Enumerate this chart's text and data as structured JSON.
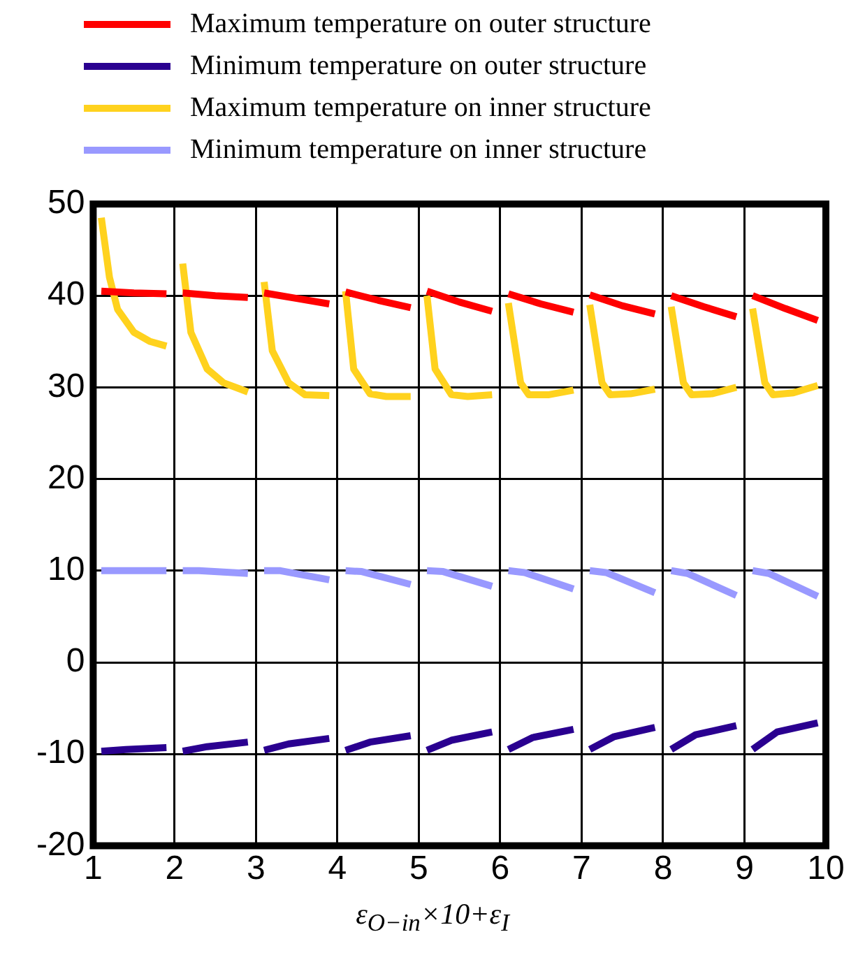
{
  "chart_data": {
    "type": "line",
    "xlabel": "ε$_{O−in}$×10+ε$_{I}$",
    "xlim": [
      1,
      10
    ],
    "xticks": [
      1,
      2,
      3,
      4,
      5,
      6,
      7,
      8,
      9,
      10
    ],
    "ylim": [
      -20,
      50
    ],
    "yticks": [
      -20,
      -10,
      0,
      10,
      20,
      30,
      40,
      50
    ],
    "grid": true,
    "legend": "top left",
    "line_style": "solid",
    "marker": "none",
    "series": [
      {
        "name": "Maximum temperature on outer structure",
        "color": "#ff0000",
        "x": [
          1.1,
          1.5,
          1.9,
          1.95,
          2.1,
          2.5,
          2.9,
          2.95,
          3.1,
          3.5,
          3.9,
          3.95,
          4.1,
          4.5,
          4.9,
          4.95,
          5.1,
          5.5,
          5.9,
          5.95,
          6.1,
          6.5,
          6.9,
          6.95,
          7.1,
          7.5,
          7.9,
          7.95,
          8.1,
          8.5,
          8.9,
          8.95,
          9.1,
          9.5,
          9.9
        ],
        "values": [
          40.5,
          40.3,
          40.2,
          null,
          40.3,
          40.0,
          39.8,
          null,
          40.3,
          39.7,
          39.1,
          null,
          40.4,
          39.5,
          38.7,
          null,
          40.5,
          39.3,
          38.3,
          null,
          40.2,
          39.1,
          38.2,
          null,
          40.1,
          38.9,
          38.0,
          null,
          40.0,
          38.8,
          37.7,
          null,
          40.0,
          38.6,
          37.3
        ]
      },
      {
        "name": "Minimum temperature on outer structure",
        "color": "#2a0090",
        "x": [
          1.1,
          1.4,
          1.9,
          1.95,
          2.1,
          2.4,
          2.9,
          2.95,
          3.1,
          3.4,
          3.9,
          3.95,
          4.1,
          4.4,
          4.9,
          4.95,
          5.1,
          5.4,
          5.9,
          5.95,
          6.1,
          6.4,
          6.9,
          6.95,
          7.1,
          7.4,
          7.9,
          7.95,
          8.1,
          8.4,
          8.9,
          8.95,
          9.1,
          9.4,
          9.9
        ],
        "values": [
          -9.7,
          -9.5,
          -9.3,
          null,
          -9.7,
          -9.2,
          -8.7,
          null,
          -9.6,
          -8.9,
          -8.3,
          null,
          -9.6,
          -8.7,
          -8.0,
          null,
          -9.6,
          -8.5,
          -7.6,
          null,
          -9.5,
          -8.2,
          -7.3,
          null,
          -9.5,
          -8.1,
          -7.1,
          null,
          -9.5,
          -7.9,
          -6.9,
          null,
          -9.5,
          -7.6,
          -6.6
        ]
      },
      {
        "name": "Maximum temperature on inner structure",
        "color": "#ffd21e",
        "x": [
          1.1,
          1.2,
          1.3,
          1.5,
          1.7,
          1.9,
          1.95,
          2.1,
          2.2,
          2.4,
          2.6,
          2.9,
          2.95,
          3.1,
          3.2,
          3.4,
          3.6,
          3.9,
          3.95,
          4.1,
          4.2,
          4.4,
          4.6,
          4.9,
          4.95,
          5.1,
          5.2,
          5.4,
          5.6,
          5.9,
          5.95,
          6.1,
          6.25,
          6.35,
          6.6,
          6.9,
          6.95,
          7.1,
          7.25,
          7.35,
          7.6,
          7.9,
          7.95,
          8.1,
          8.25,
          8.35,
          8.6,
          8.9,
          8.95,
          9.1,
          9.25,
          9.35,
          9.6,
          9.9
        ],
        "values": [
          48.5,
          42,
          38.5,
          36,
          35,
          34.5,
          null,
          43.5,
          36,
          32,
          30.5,
          29.5,
          null,
          41.5,
          34,
          30.5,
          29.2,
          29.1,
          null,
          40.5,
          32,
          29.3,
          29,
          29,
          null,
          40,
          32,
          29.2,
          29,
          29.2,
          null,
          39.2,
          30.5,
          29.2,
          29.2,
          29.7,
          null,
          39,
          30.5,
          29.2,
          29.3,
          29.8,
          null,
          38.8,
          30.5,
          29.2,
          29.3,
          30,
          null,
          38.6,
          30.5,
          29.2,
          29.4,
          30.2
        ]
      },
      {
        "name": "Minimum temperature on inner structure",
        "color": "#9999ff",
        "x": [
          1.1,
          1.3,
          1.9,
          1.95,
          2.1,
          2.3,
          2.9,
          2.95,
          3.1,
          3.3,
          3.9,
          3.95,
          4.1,
          4.3,
          4.9,
          4.95,
          5.1,
          5.3,
          5.9,
          5.95,
          6.1,
          6.3,
          6.9,
          6.95,
          7.1,
          7.3,
          7.9,
          7.95,
          8.1,
          8.3,
          8.9,
          8.95,
          9.1,
          9.3,
          9.9
        ],
        "values": [
          10,
          10,
          10,
          null,
          10,
          10,
          9.7,
          null,
          10,
          10,
          9.0,
          null,
          10,
          9.9,
          8.5,
          null,
          10,
          9.9,
          8.3,
          null,
          10,
          9.8,
          8.0,
          null,
          10,
          9.8,
          7.6,
          null,
          10,
          9.7,
          7.3,
          null,
          10,
          9.7,
          7.2
        ]
      }
    ]
  }
}
